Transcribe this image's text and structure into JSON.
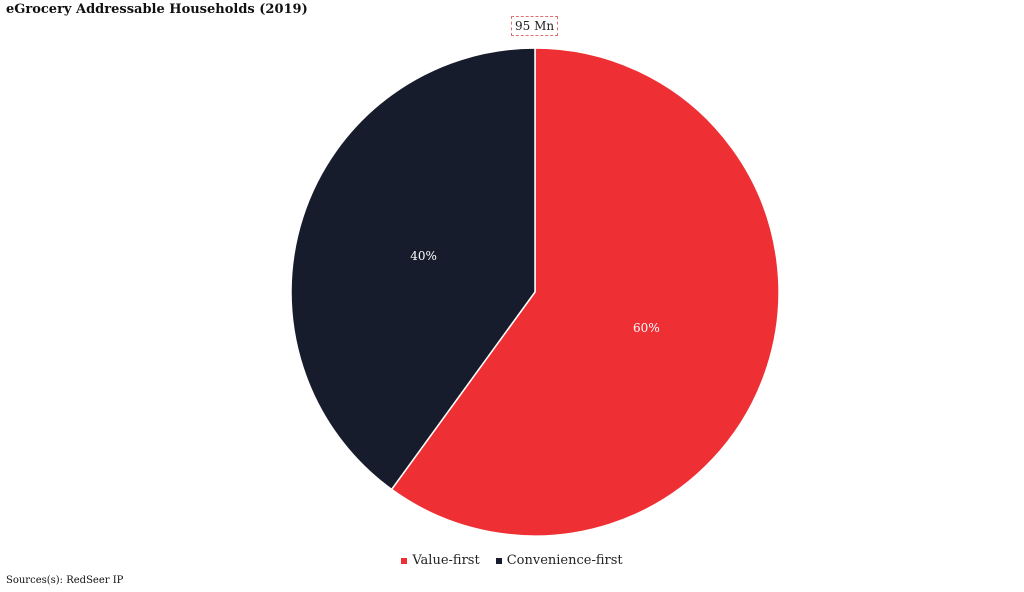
{
  "chart_data": {
    "type": "pie",
    "title": "eGrocery Addressable Households (2019)",
    "total_label": "95 Mn",
    "slices": [
      {
        "name": "Value-first",
        "value": 60,
        "label": "60%",
        "color": "#ee3035"
      },
      {
        "name": "Convenience-first",
        "value": 40,
        "label": "40%",
        "color": "#161c2b"
      }
    ],
    "legend_position": "bottom",
    "source": "Sources(s): RedSeer IP"
  }
}
